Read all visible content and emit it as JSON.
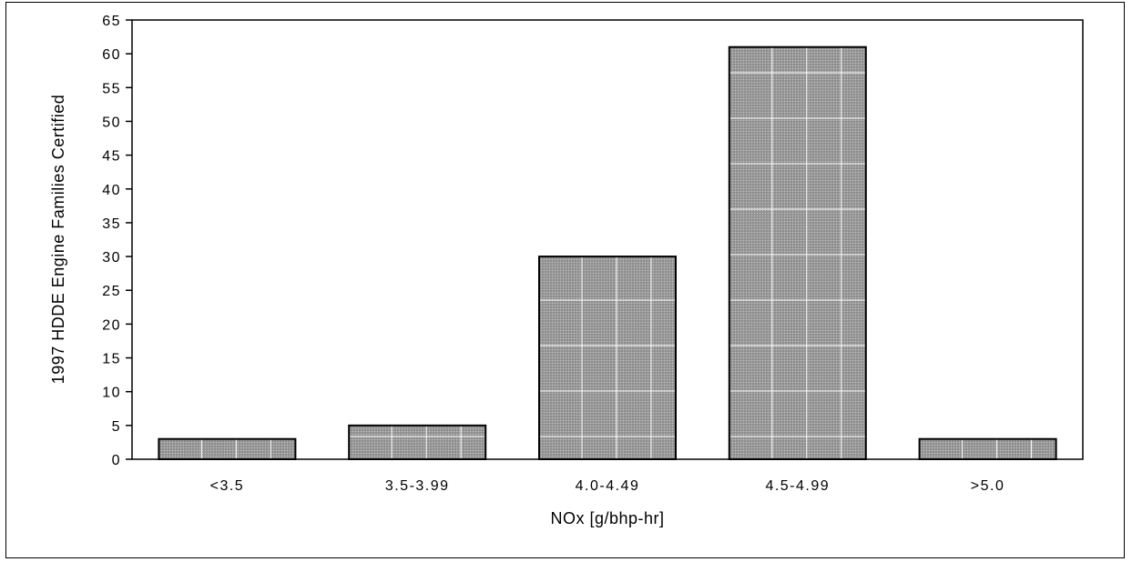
{
  "chart_data": {
    "type": "bar",
    "title": "",
    "xlabel": "NOx [g/bhp-hr]",
    "ylabel": "1997 HDDE Engine Families Certified",
    "categories": [
      "<3.5",
      "3.5-3.99",
      "4.0-4.49",
      "4.5-4.99",
      ">5.0"
    ],
    "values": [
      3,
      5,
      30,
      61,
      3
    ],
    "ylim": [
      0,
      65
    ],
    "yticks": [
      0,
      5,
      10,
      15,
      20,
      25,
      30,
      35,
      40,
      45,
      50,
      55,
      60,
      65
    ],
    "grid": false,
    "legend": "none",
    "bar_color": "#a6a6a6",
    "bar_grid_color": "#ffffff"
  }
}
